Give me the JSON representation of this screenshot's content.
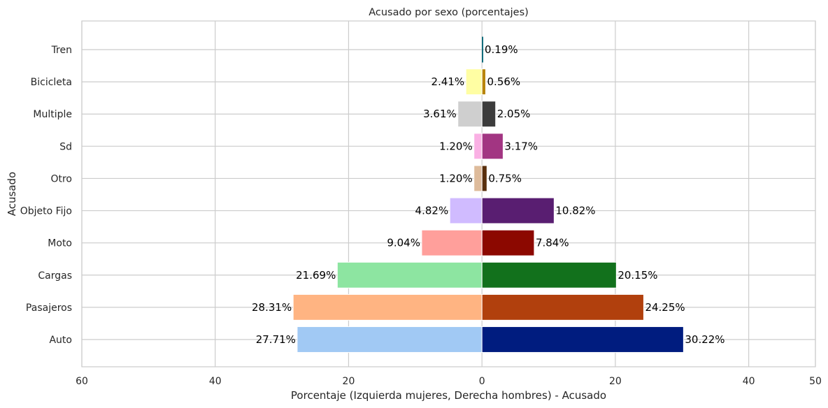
{
  "chart_data": {
    "type": "bar",
    "orientation": "horizontal-diverging",
    "title": "Acusado por sexo (porcentajes)",
    "xlabel": "Porcentaje (Izquierda mujeres, Derecha hombres) - Acusado",
    "ylabel": "Acusado",
    "categories": [
      "Auto",
      "Pasajeros",
      "Cargas",
      "Moto",
      "Objeto Fijo",
      "Otro",
      "Sd",
      "Multiple",
      "Bicicleta",
      "Tren"
    ],
    "xlim": [
      -60,
      50
    ],
    "x_ticks": [
      -60,
      -40,
      -20,
      0,
      20,
      40,
      50
    ],
    "x_tick_labels": [
      "60",
      "40",
      "20",
      "0",
      "20",
      "40",
      "50"
    ],
    "grid": true,
    "series": [
      {
        "side": "left",
        "values": [
          27.71,
          28.31,
          21.69,
          9.04,
          4.82,
          1.2,
          1.2,
          3.61,
          2.41,
          0.0
        ],
        "labels": [
          "27.71%",
          "28.31%",
          "21.69%",
          "9.04%",
          "4.82%",
          "1.20%",
          "1.20%",
          "3.61%",
          "2.41%",
          ""
        ],
        "colors": [
          "#a1c9f4",
          "#ffb482",
          "#8de5a1",
          "#ff9f9b",
          "#d0bbff",
          "#debb9b",
          "#fab0e4",
          "#cfcfcf",
          "#fffea3",
          "#b9f2f0"
        ]
      },
      {
        "side": "right",
        "values": [
          30.22,
          24.25,
          20.15,
          7.84,
          10.82,
          0.75,
          3.17,
          2.05,
          0.56,
          0.19
        ],
        "labels": [
          "30.22%",
          "24.25%",
          "20.15%",
          "7.84%",
          "10.82%",
          "0.75%",
          "3.17%",
          "2.05%",
          "0.56%",
          "0.19%"
        ],
        "colors": [
          "#001c7f",
          "#b1400d",
          "#12711c",
          "#8c0800",
          "#591e71",
          "#592f0d",
          "#a23582",
          "#3c3c3c",
          "#b8850a",
          "#006374"
        ]
      }
    ]
  }
}
